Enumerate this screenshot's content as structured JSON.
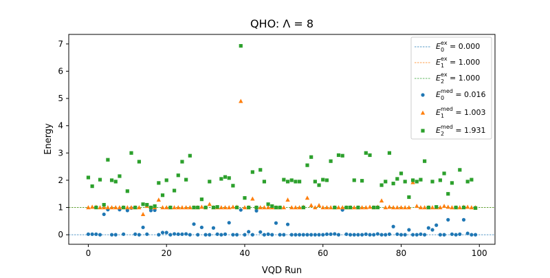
{
  "chart_data": {
    "type": "scatter",
    "title": "QHO: Λ = 8",
    "xlabel": "VQD Run",
    "ylabel": "Energy",
    "xlim": [
      -5,
      104
    ],
    "ylim": [
      -0.35,
      7.35
    ],
    "xticks": [
      0,
      20,
      40,
      60,
      80,
      100
    ],
    "yticks": [
      0,
      1,
      2,
      3,
      4,
      5,
      6,
      7
    ],
    "legend_position": "top-right",
    "reference_lines": [
      {
        "sym": "E",
        "sub": "0",
        "sup": "ex",
        "value_text": " = 0.000",
        "y": 0.0,
        "color": "#1f77b4"
      },
      {
        "sym": "E",
        "sub": "1",
        "sup": "ex",
        "value_text": " = 1.000",
        "y": 1.0,
        "color": "#ff7f0e"
      },
      {
        "sym": "E",
        "sub": "2",
        "sup": "ex",
        "value_text": " = 1.000",
        "y": 1.0,
        "color": "#2ca02c"
      }
    ],
    "series": [
      {
        "sym": "E",
        "sub": "0",
        "sup": "med",
        "value_text": " = 0.016",
        "marker": "circle",
        "color": "#1f77b4",
        "y": [
          0.02,
          0.02,
          0.02,
          0.0,
          0.75,
          0.92,
          0.0,
          0.0,
          0.92,
          0.02,
          0.89,
          0.98,
          0.02,
          0.0,
          0.27,
          0.02,
          0.89,
          0.9,
          0.0,
          0.08,
          0.08,
          0.0,
          0.03,
          0.02,
          0.02,
          0.03,
          0.0,
          0.39,
          0.0,
          0.27,
          0.0,
          0.0,
          0.25,
          0.02,
          0.0,
          0.02,
          0.44,
          0.0,
          0.0,
          0.91,
          0.0,
          0.11,
          0.0,
          0.88,
          0.1,
          0.0,
          0.02,
          0.0,
          0.43,
          0.0,
          0.0,
          0.38,
          0.0,
          0.0,
          0.0,
          0.0,
          0.0,
          0.0,
          0.0,
          0.0,
          0.0,
          0.02,
          0.02,
          0.03,
          0.0,
          0.91,
          0.02,
          0.0,
          0.0,
          0.0,
          0.0,
          0.02,
          0.0,
          0.0,
          0.03,
          0.0,
          0.0,
          0.02,
          0.3,
          0.02,
          0.0,
          0.0,
          0.18,
          0.0,
          0.0,
          0.02,
          0.0,
          0.25,
          0.18,
          0.35,
          0.0,
          0.0,
          0.55,
          0.02,
          0.0,
          0.02,
          0.55,
          0.05,
          0.0,
          0.0
        ]
      },
      {
        "sym": "E",
        "sub": "1",
        "sup": "med",
        "value_text": " = 1.003",
        "marker": "triangle",
        "color": "#ff7f0e",
        "y": [
          1.0,
          1.02,
          1.02,
          1.0,
          1.0,
          1.0,
          1.0,
          1.0,
          1.0,
          1.0,
          1.0,
          1.0,
          1.0,
          1.0,
          0.75,
          1.05,
          1.0,
          1.0,
          1.28,
          1.0,
          1.0,
          1.0,
          1.0,
          1.0,
          1.0,
          1.0,
          1.0,
          1.0,
          1.0,
          1.02,
          1.0,
          1.12,
          1.0,
          1.0,
          1.0,
          1.0,
          1.0,
          1.02,
          1.02,
          4.9,
          1.0,
          1.0,
          1.32,
          1.0,
          1.0,
          1.0,
          1.0,
          1.0,
          1.0,
          1.0,
          1.0,
          1.28,
          1.0,
          1.0,
          1.0,
          1.02,
          1.35,
          1.08,
          1.0,
          1.08,
          1.0,
          1.0,
          1.0,
          1.0,
          1.0,
          1.0,
          1.0,
          1.0,
          1.0,
          1.0,
          1.0,
          1.0,
          1.02,
          1.0,
          1.02,
          1.25,
          1.0,
          1.02,
          1.0,
          1.0,
          1.0,
          1.0,
          1.0,
          1.92,
          1.05,
          1.0,
          1.0,
          1.0,
          1.0,
          1.0,
          1.0,
          1.05,
          1.02,
          1.0,
          1.0,
          1.0,
          1.02,
          1.02,
          1.0,
          1.0
        ]
      },
      {
        "sym": "E",
        "sub": "2",
        "sup": "med",
        "value_text": " = 1.931",
        "marker": "square",
        "color": "#2ca02c",
        "y": [
          2.1,
          1.78,
          1.0,
          2.02,
          1.1,
          2.75,
          2.0,
          1.95,
          2.15,
          1.0,
          1.6,
          3.0,
          1.0,
          2.68,
          1.12,
          1.1,
          1.0,
          1.05,
          1.9,
          1.45,
          2.0,
          1.0,
          1.62,
          2.18,
          2.68,
          2.02,
          2.9,
          1.0,
          1.0,
          1.3,
          1.0,
          1.95,
          1.0,
          1.02,
          2.05,
          2.12,
          2.08,
          1.8,
          1.0,
          6.93,
          1.35,
          1.0,
          2.3,
          1.0,
          2.38,
          1.95,
          1.12,
          1.05,
          1.0,
          1.0,
          2.02,
          1.95,
          2.0,
          1.95,
          1.95,
          1.0,
          2.55,
          2.85,
          1.95,
          1.82,
          2.02,
          2.0,
          2.7,
          1.0,
          2.92,
          2.9,
          1.0,
          1.0,
          2.0,
          1.0,
          1.98,
          3.0,
          2.92,
          1.0,
          1.0,
          1.82,
          1.95,
          3.0,
          1.88,
          2.05,
          2.25,
          1.95,
          1.38,
          2.0,
          1.95,
          2.02,
          2.7,
          1.0,
          1.95,
          1.02,
          2.0,
          2.25,
          1.5,
          1.9,
          1.0,
          2.38,
          1.0,
          1.95,
          2.02,
          0.98
        ]
      }
    ]
  }
}
